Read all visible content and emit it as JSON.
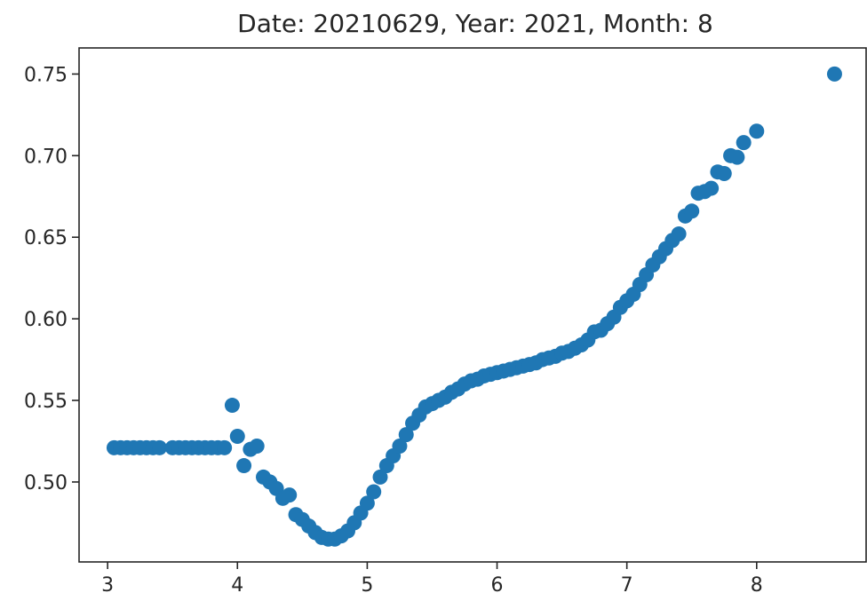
{
  "chart_data": {
    "type": "scatter",
    "title": "Date: 20210629, Year: 2021, Month: 8",
    "xlabel": "",
    "ylabel": "",
    "xlim": [
      2.78,
      8.85
    ],
    "ylim": [
      0.451,
      0.766
    ],
    "x_ticks": [
      3,
      4,
      5,
      6,
      7,
      8
    ],
    "y_ticks": [
      0.5,
      0.55,
      0.6,
      0.65,
      0.7,
      0.75
    ],
    "x_tick_labels": [
      "3",
      "4",
      "5",
      "6",
      "7",
      "8"
    ],
    "y_tick_labels": [
      "0.50",
      "0.55",
      "0.60",
      "0.65",
      "0.70",
      "0.75"
    ],
    "grid": false,
    "legend": "none",
    "marker_color": "#1f77b4",
    "x": [
      3.05,
      3.1,
      3.15,
      3.2,
      3.25,
      3.3,
      3.35,
      3.4,
      3.5,
      3.55,
      3.6,
      3.65,
      3.7,
      3.75,
      3.8,
      3.85,
      3.9,
      3.96,
      4.0,
      4.05,
      4.1,
      4.15,
      4.2,
      4.25,
      4.3,
      4.35,
      4.4,
      4.45,
      4.5,
      4.55,
      4.6,
      4.65,
      4.7,
      4.75,
      4.8,
      4.85,
      4.9,
      4.95,
      5.0,
      5.05,
      5.1,
      5.15,
      5.2,
      5.25,
      5.3,
      5.35,
      5.4,
      5.45,
      5.5,
      5.55,
      5.6,
      5.65,
      5.7,
      5.75,
      5.8,
      5.85,
      5.9,
      5.95,
      6.0,
      6.05,
      6.1,
      6.15,
      6.2,
      6.25,
      6.3,
      6.35,
      6.4,
      6.45,
      6.5,
      6.55,
      6.6,
      6.65,
      6.7,
      6.75,
      6.8,
      6.85,
      6.9,
      6.95,
      7.0,
      7.05,
      7.1,
      7.15,
      7.2,
      7.25,
      7.3,
      7.35,
      7.4,
      7.45,
      7.5,
      7.55,
      7.6,
      7.65,
      7.7,
      7.75,
      7.8,
      7.85,
      7.9,
      8.0,
      8.6
    ],
    "y": [
      0.521,
      0.521,
      0.521,
      0.521,
      0.521,
      0.521,
      0.521,
      0.521,
      0.521,
      0.521,
      0.521,
      0.521,
      0.521,
      0.521,
      0.521,
      0.521,
      0.521,
      0.547,
      0.528,
      0.51,
      0.52,
      0.522,
      0.503,
      0.5,
      0.496,
      0.49,
      0.492,
      0.48,
      0.477,
      0.473,
      0.469,
      0.466,
      0.465,
      0.465,
      0.467,
      0.47,
      0.475,
      0.481,
      0.487,
      0.494,
      0.503,
      0.51,
      0.516,
      0.522,
      0.529,
      0.536,
      0.541,
      0.546,
      0.548,
      0.55,
      0.552,
      0.555,
      0.557,
      0.56,
      0.562,
      0.563,
      0.565,
      0.566,
      0.567,
      0.568,
      0.569,
      0.57,
      0.571,
      0.572,
      0.573,
      0.575,
      0.576,
      0.577,
      0.579,
      0.58,
      0.582,
      0.584,
      0.587,
      0.592,
      0.593,
      0.597,
      0.601,
      0.607,
      0.611,
      0.615,
      0.621,
      0.627,
      0.633,
      0.638,
      0.643,
      0.648,
      0.652,
      0.663,
      0.666,
      0.677,
      0.678,
      0.68,
      0.69,
      0.689,
      0.7,
      0.699,
      0.708,
      0.715,
      0.75
    ]
  }
}
